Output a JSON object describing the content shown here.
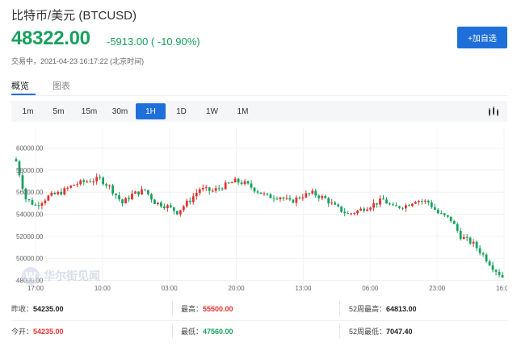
{
  "header": {
    "title": "比特币/美元 (BTCUSD)",
    "price": "48322.00",
    "change": "-5913.00 ( -10.90%)",
    "status": "交易中，2021-04-23 16:17:22 (北京时间)",
    "add_button": "+加自选"
  },
  "tabs": [
    {
      "label": "概览",
      "active": true
    },
    {
      "label": "图表",
      "active": false
    }
  ],
  "periods": [
    {
      "label": "1m",
      "active": false
    },
    {
      "label": "5m",
      "active": false
    },
    {
      "label": "15m",
      "active": false
    },
    {
      "label": "30m",
      "active": false
    },
    {
      "label": "1H",
      "active": true
    },
    {
      "label": "1D",
      "active": false
    },
    {
      "label": "1W",
      "active": false
    },
    {
      "label": "1M",
      "active": false
    }
  ],
  "chart_type_icon": "candlestick-bars-icon",
  "colors": {
    "up": "#e5322e",
    "down": "#19a15f",
    "accent": "#1e6fd9"
  },
  "watermark": "华尔街见闻",
  "chart_data": {
    "type": "candlestick",
    "y_ticks": [
      "60000.00",
      "58000.00",
      "56000.00",
      "54000.00",
      "52000.00",
      "50000.00",
      "48000.00"
    ],
    "x_ticks": [
      "17:00",
      "10:00",
      "03:00",
      "20:00",
      "13:00",
      "06:00",
      "23:00",
      "16:00"
    ],
    "ylim": [
      47600,
      61800
    ],
    "close_path": [
      [
        0,
        58800
      ],
      [
        3,
        55400
      ],
      [
        6,
        54800
      ],
      [
        10,
        55600
      ],
      [
        14,
        56000
      ],
      [
        18,
        56700
      ],
      [
        22,
        57000
      ],
      [
        26,
        57200
      ],
      [
        29,
        56500
      ],
      [
        33,
        55000
      ],
      [
        36,
        55800
      ],
      [
        40,
        56200
      ],
      [
        43,
        55100
      ],
      [
        47,
        54700
      ],
      [
        50,
        54200
      ],
      [
        54,
        55300
      ],
      [
        57,
        56300
      ],
      [
        61,
        56100
      ],
      [
        64,
        56500
      ],
      [
        68,
        57000
      ],
      [
        71,
        56800
      ],
      [
        75,
        56100
      ],
      [
        78,
        55600
      ],
      [
        82,
        55600
      ],
      [
        85,
        55100
      ],
      [
        89,
        55700
      ],
      [
        92,
        55900
      ],
      [
        96,
        55400
      ],
      [
        99,
        54700
      ],
      [
        103,
        54000
      ],
      [
        106,
        54300
      ],
      [
        110,
        54800
      ],
      [
        114,
        55300
      ],
      [
        117,
        54600
      ],
      [
        121,
        54800
      ],
      [
        124,
        55300
      ],
      [
        128,
        55100
      ],
      [
        131,
        54100
      ],
      [
        135,
        53500
      ],
      [
        138,
        52000
      ],
      [
        142,
        51300
      ],
      [
        145,
        50300
      ],
      [
        148,
        49200
      ],
      [
        151,
        48322
      ]
    ]
  },
  "stats": {
    "prev_close": {
      "label": "昨收：",
      "value": "54235.00"
    },
    "open": {
      "label": "今开：",
      "value": "54235.00"
    },
    "high": {
      "label": "最高：",
      "value": "55500.00"
    },
    "low": {
      "label": "最低：",
      "value": "47560.00"
    },
    "high_52w": {
      "label": "52周最高：",
      "value": "64813.00"
    },
    "low_52w": {
      "label": "52周最低：",
      "value": "7047.40"
    }
  }
}
